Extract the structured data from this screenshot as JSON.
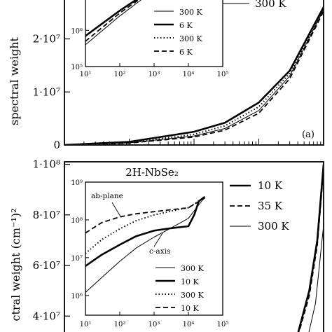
{
  "chart_data": [
    {
      "panel": "top",
      "type": "line",
      "panel_tag": "(a)",
      "ylabel": "spectral weight",
      "y_tick_labels": [
        "0",
        "1·10⁷",
        "2·10⁷"
      ],
      "y_ticks": [
        0,
        10000000,
        20000000
      ],
      "ylim": [
        0,
        28000000
      ],
      "xscale": "log",
      "xlim": [
        10,
        100000
      ],
      "legend": {
        "placement": "top-right",
        "entries": [
          {
            "label": "300 K",
            "style": "thin-solid"
          }
        ]
      },
      "series": [
        {
          "style": "thick-solid",
          "x": [
            10,
            100,
            1000,
            3000,
            10000,
            30000,
            100000
          ],
          "y": [
            0,
            600000,
            2500000,
            4200000,
            8000000,
            14000000,
            26000000
          ]
        },
        {
          "style": "thin-solid",
          "x": [
            10,
            100,
            1000,
            3000,
            10000,
            30000,
            100000
          ],
          "y": [
            0,
            400000,
            1700000,
            3100000,
            6500000,
            13000000,
            25500000
          ]
        },
        {
          "style": "dotted",
          "x": [
            10,
            100,
            1000,
            3000,
            10000,
            30000,
            100000
          ],
          "y": [
            0,
            450000,
            2000000,
            3600000,
            7200000,
            13500000,
            25800000
          ]
        },
        {
          "style": "dashed",
          "x": [
            10,
            100,
            1000,
            3000,
            10000,
            30000,
            100000
          ],
          "y": [
            0,
            350000,
            1500000,
            2800000,
            6000000,
            12500000,
            25200000
          ]
        }
      ],
      "inset": {
        "xscale": "log",
        "yscale": "log",
        "xlim": [
          10,
          100000
        ],
        "ylim": [
          100000,
          30000000
        ],
        "x_tick_labels": [
          "10¹",
          "10²",
          "10³",
          "10⁴",
          "10⁵"
        ],
        "y_tick_labels": [
          "10⁵",
          "10⁶",
          "10⁷"
        ],
        "legend": [
          {
            "label": "300 K",
            "style": "thin-solid"
          },
          {
            "label": "6 K",
            "style": "thick-solid"
          },
          {
            "label": "300 K",
            "style": "dotted"
          },
          {
            "label": "6 K",
            "style": "dashed"
          }
        ],
        "series": [
          {
            "style": "thin-solid",
            "x": [
              10,
              100,
              1000,
              2000
            ],
            "y": [
              400000,
              2500000,
              13000000,
              25000000
            ]
          },
          {
            "style": "thick-solid",
            "x": [
              10,
              100,
              1000,
              2000
            ],
            "y": [
              700000,
              3500000,
              15000000,
              25000000
            ]
          },
          {
            "style": "dotted",
            "x": [
              10,
              100,
              400
            ],
            "y": [
              8000000,
              20000000,
              30000000
            ]
          },
          {
            "style": "dashed",
            "x": [
              10,
              100,
              1000,
              2000
            ],
            "y": [
              500000,
              3000000,
              14000000,
              25000000
            ]
          }
        ]
      }
    },
    {
      "panel": "bottom",
      "type": "line",
      "title": "2H-NbSe₂",
      "ylabel": "ctral weight (cm⁻¹)²",
      "y_tick_labels": [
        "4·10⁷",
        "6·10⁷",
        "8·10⁷",
        "1·10⁸"
      ],
      "y_ticks": [
        40000000,
        60000000,
        80000000,
        100000000
      ],
      "ylim": [
        29000000,
        101000000
      ],
      "xscale": "log",
      "xlim": [
        10,
        100000
      ],
      "legend": {
        "placement": "top-right",
        "entries": [
          {
            "label": "10 K",
            "style": "thick-solid"
          },
          {
            "label": "35 K",
            "style": "dashed"
          },
          {
            "label": "300 K",
            "style": "thin-solid"
          }
        ]
      },
      "series": [
        {
          "style": "thick-solid",
          "x": [
            40000,
            60000,
            80000,
            100000
          ],
          "y": [
            33000000,
            50000000,
            70000000,
            100000000
          ]
        },
        {
          "style": "dashed",
          "x": [
            40000,
            60000,
            80000,
            100000
          ],
          "y": [
            32000000,
            48000000,
            68000000,
            98000000
          ]
        },
        {
          "style": "thin-solid",
          "x": [
            55000,
            75000,
            100000
          ],
          "y": [
            30000000,
            45000000,
            76000000
          ]
        }
      ],
      "inset": {
        "xscale": "log",
        "yscale": "log",
        "xlim": [
          10,
          100000
        ],
        "ylim": [
          300000,
          1000000000
        ],
        "x_tick_labels": [
          "10¹",
          "10²",
          "10³",
          "10⁴",
          "10⁵"
        ],
        "y_tick_labels": [
          "10⁶",
          "10⁷",
          "10⁸",
          "10⁹"
        ],
        "annotations": [
          "ab-plane",
          "c-axis"
        ],
        "legend": [
          {
            "label": "300 K",
            "style": "thin-solid"
          },
          {
            "label": "10 K",
            "style": "thick-solid"
          },
          {
            "label": "300 K",
            "style": "dotted"
          },
          {
            "label": "10 K",
            "style": "dashed"
          }
        ],
        "series": [
          {
            "style": "thin-solid",
            "x": [
              10,
              30,
              100,
              300,
              1000,
              3000,
              10000,
              20000,
              30000
            ],
            "y": [
              1200000,
              3000000,
              8000000,
              18000000,
              35000000,
              60000000,
              110000000,
              250000000,
              400000000
            ]
          },
          {
            "style": "thick-solid",
            "x": [
              10,
              30,
              100,
              300,
              1000,
              3000,
              10000,
              15000,
              20000,
              30000
            ],
            "y": [
              6000000,
              12000000,
              22000000,
              37000000,
              52000000,
              60000000,
              68000000,
              140000000,
              310000000,
              410000000
            ]
          },
          {
            "style": "dotted",
            "x": [
              10,
              30,
              100,
              300,
              1000,
              3000,
              10000,
              30000
            ],
            "y": [
              13000000,
              30000000,
              58000000,
              95000000,
              135000000,
              170000000,
              210000000,
              400000000
            ]
          },
          {
            "style": "dashed",
            "x": [
              10,
              30,
              100,
              300,
              1000,
              3000,
              10000,
              30000
            ],
            "y": [
              45000000,
              85000000,
              120000000,
              145000000,
              165000000,
              185000000,
              210000000,
              380000000
            ]
          }
        ]
      }
    }
  ]
}
